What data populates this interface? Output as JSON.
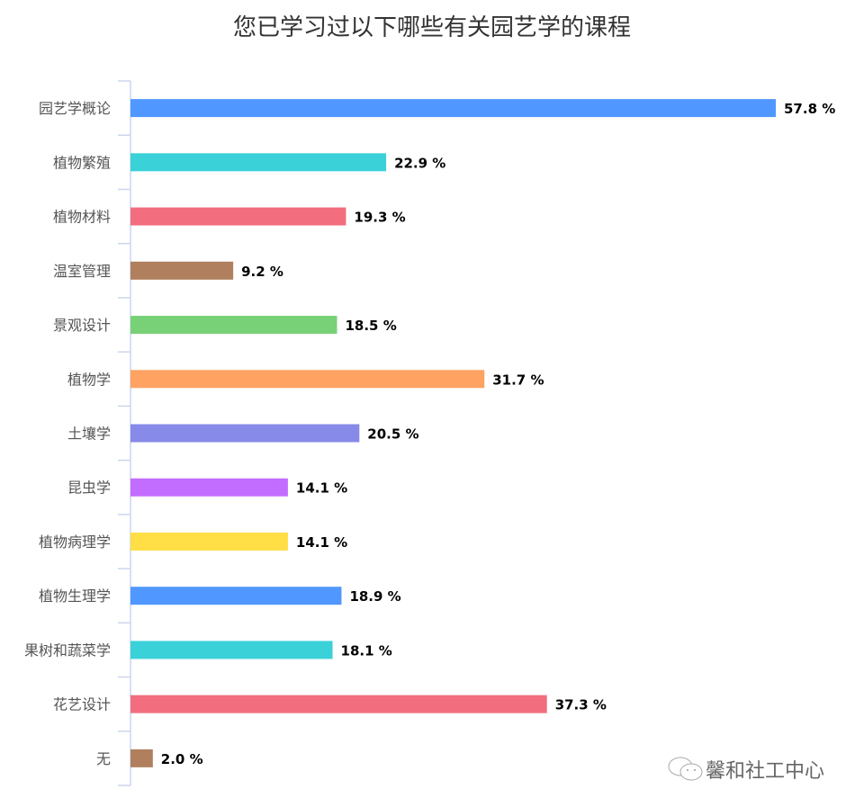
{
  "chart_data": {
    "type": "bar",
    "orientation": "horizontal",
    "title": "您已学习过以下哪些有关园艺学的课程",
    "categories": [
      "园艺学概论",
      "植物繁殖",
      "植物材料",
      "温室管理",
      "景观设计",
      "植物学",
      "土壤学",
      "昆虫学",
      "植物病理学",
      "植物生理学",
      "果树和蔬菜学",
      "花艺设计",
      "无"
    ],
    "values": [
      57.8,
      22.9,
      19.3,
      9.2,
      18.5,
      31.7,
      20.5,
      14.1,
      14.1,
      18.9,
      18.1,
      37.3,
      2.0
    ],
    "value_suffix": " %",
    "colors": [
      "#5098ff",
      "#3ad1d9",
      "#f26d7e",
      "#b07f5e",
      "#78d177",
      "#ffa262",
      "#878ae8",
      "#c26dff",
      "#ffde46",
      "#5098ff",
      "#3ad1d9",
      "#f26d7e",
      "#b07f5e"
    ],
    "xlim": [
      0,
      60
    ],
    "grid": false,
    "legend": "none"
  },
  "watermark": {
    "text": "馨和社工中心",
    "icon": "wechat-icon"
  }
}
